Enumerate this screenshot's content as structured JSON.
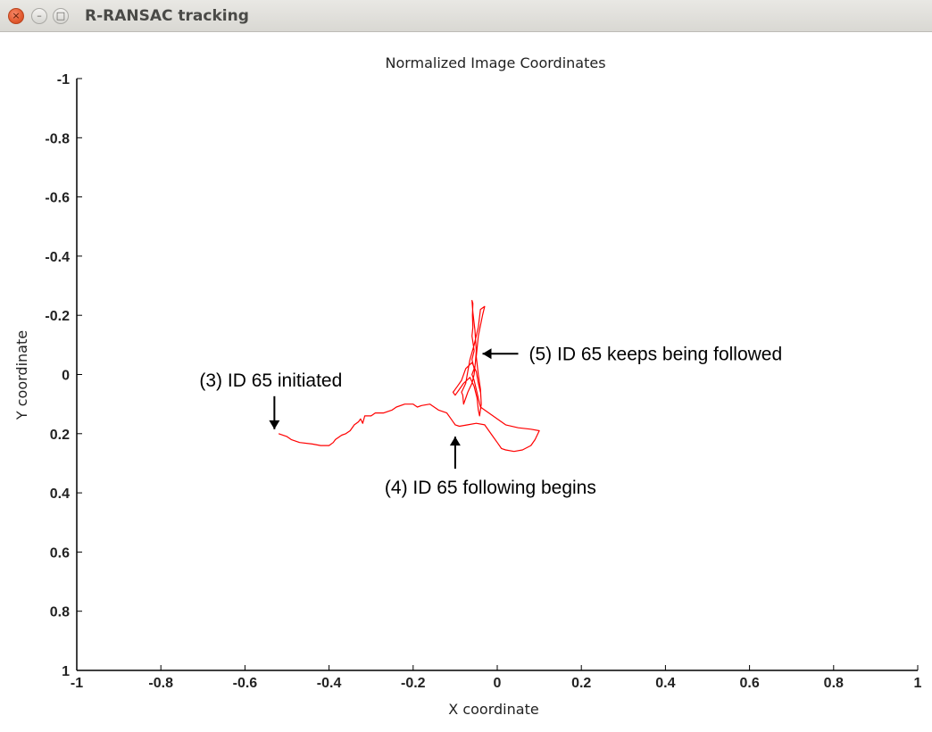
{
  "window": {
    "title": "R-RANSAC tracking",
    "buttons": {
      "close": "×",
      "minimize": "–",
      "maximize": "□"
    }
  },
  "chart_data": {
    "type": "line",
    "title": "Normalized Image Coordinates",
    "xlabel": "X coordinate",
    "ylabel": "Y coordinate",
    "xlim": [
      -1,
      1
    ],
    "ylim": [
      -1,
      1
    ],
    "y_inverted": true,
    "grid": false,
    "x_ticks": [
      "-1",
      "-0.8",
      "-0.6",
      "-0.4",
      "-0.2",
      "0",
      "0.2",
      "0.4",
      "0.6",
      "0.8",
      "1"
    ],
    "y_ticks": [
      "-1",
      "-0.8",
      "-0.6",
      "-0.4",
      "-0.2",
      "0",
      "0.2",
      "0.4",
      "0.6",
      "0.8",
      "1"
    ],
    "series": [
      {
        "color": "#ff0000",
        "points": [
          [
            -0.52,
            0.2
          ],
          [
            -0.5,
            0.21
          ],
          [
            -0.49,
            0.22
          ],
          [
            -0.47,
            0.23
          ],
          [
            -0.44,
            0.235
          ],
          [
            -0.42,
            0.24
          ],
          [
            -0.4,
            0.24
          ],
          [
            -0.39,
            0.23
          ],
          [
            -0.385,
            0.22
          ],
          [
            -0.37,
            0.205
          ],
          [
            -0.36,
            0.2
          ],
          [
            -0.35,
            0.19
          ],
          [
            -0.34,
            0.17
          ],
          [
            -0.33,
            0.16
          ],
          [
            -0.325,
            0.15
          ],
          [
            -0.32,
            0.165
          ],
          [
            -0.315,
            0.14
          ],
          [
            -0.3,
            0.14
          ],
          [
            -0.29,
            0.13
          ],
          [
            -0.27,
            0.13
          ],
          [
            -0.26,
            0.125
          ],
          [
            -0.25,
            0.12
          ],
          [
            -0.24,
            0.11
          ],
          [
            -0.22,
            0.1
          ],
          [
            -0.2,
            0.1
          ],
          [
            -0.19,
            0.11
          ],
          [
            -0.18,
            0.105
          ],
          [
            -0.16,
            0.1
          ],
          [
            -0.14,
            0.12
          ],
          [
            -0.12,
            0.13
          ],
          [
            -0.11,
            0.15
          ],
          [
            -0.1,
            0.17
          ],
          [
            -0.09,
            0.175
          ],
          [
            -0.07,
            0.17
          ],
          [
            -0.05,
            0.165
          ],
          [
            -0.03,
            0.17
          ],
          [
            -0.02,
            0.19
          ],
          [
            -0.01,
            0.21
          ],
          [
            0.0,
            0.23
          ],
          [
            0.01,
            0.25
          ],
          [
            0.02,
            0.255
          ],
          [
            0.04,
            0.26
          ],
          [
            0.06,
            0.255
          ],
          [
            0.08,
            0.24
          ],
          [
            0.09,
            0.22
          ],
          [
            0.1,
            0.19
          ],
          [
            0.08,
            0.185
          ],
          [
            0.05,
            0.18
          ],
          [
            0.02,
            0.17
          ],
          [
            0.0,
            0.15
          ],
          [
            -0.02,
            0.13
          ],
          [
            -0.04,
            0.11
          ],
          [
            -0.045,
            0.08
          ],
          [
            -0.05,
            0.05
          ],
          [
            -0.055,
            0.02
          ],
          [
            -0.06,
            0.0
          ],
          [
            -0.055,
            -0.02
          ],
          [
            -0.06,
            -0.05
          ],
          [
            -0.055,
            -0.08
          ],
          [
            -0.057,
            -0.1
          ],
          [
            -0.06,
            -0.13
          ],
          [
            -0.058,
            -0.16
          ],
          [
            -0.059,
            -0.2
          ],
          [
            -0.058,
            -0.24
          ],
          [
            -0.06,
            -0.25
          ],
          [
            -0.058,
            -0.21
          ],
          [
            -0.053,
            -0.15
          ],
          [
            -0.05,
            -0.08
          ],
          [
            -0.052,
            -0.04
          ],
          [
            -0.055,
            0.0
          ],
          [
            -0.06,
            0.03
          ],
          [
            -0.07,
            0.06
          ],
          [
            -0.075,
            0.08
          ],
          [
            -0.08,
            0.1
          ],
          [
            -0.082,
            0.07
          ],
          [
            -0.085,
            0.06
          ],
          [
            -0.075,
            0.03
          ],
          [
            -0.07,
            -0.01
          ],
          [
            -0.065,
            -0.05
          ],
          [
            -0.055,
            -0.1
          ],
          [
            -0.045,
            -0.16
          ],
          [
            -0.04,
            -0.22
          ],
          [
            -0.03,
            -0.23
          ],
          [
            -0.035,
            -0.2
          ],
          [
            -0.045,
            -0.13
          ],
          [
            -0.05,
            -0.06
          ],
          [
            -0.045,
            0.0
          ],
          [
            -0.04,
            0.05
          ],
          [
            -0.038,
            0.1
          ],
          [
            -0.042,
            0.14
          ],
          [
            -0.045,
            0.12
          ],
          [
            -0.048,
            0.08
          ],
          [
            -0.055,
            0.04
          ],
          [
            -0.065,
            0.01
          ],
          [
            -0.08,
            0.03
          ],
          [
            -0.09,
            0.05
          ],
          [
            -0.1,
            0.07
          ],
          [
            -0.105,
            0.06
          ],
          [
            -0.095,
            0.04
          ],
          [
            -0.085,
            0.02
          ],
          [
            -0.075,
            -0.02
          ],
          [
            -0.06,
            -0.04
          ],
          [
            -0.05,
            -0.01
          ],
          [
            -0.045,
            0.03
          ],
          [
            -0.04,
            0.06
          ]
        ]
      }
    ],
    "annotations": [
      {
        "text": "(3) ID 65 initiated",
        "target": [
          -0.53,
          0.185
        ],
        "arrow": "down"
      },
      {
        "text": "(4) ID 65 following begins",
        "target": [
          -0.1,
          0.21
        ],
        "arrow": "up"
      },
      {
        "text": "(5) ID 65 keeps being followed",
        "target": [
          -0.035,
          -0.07
        ],
        "arrow": "left"
      }
    ]
  }
}
